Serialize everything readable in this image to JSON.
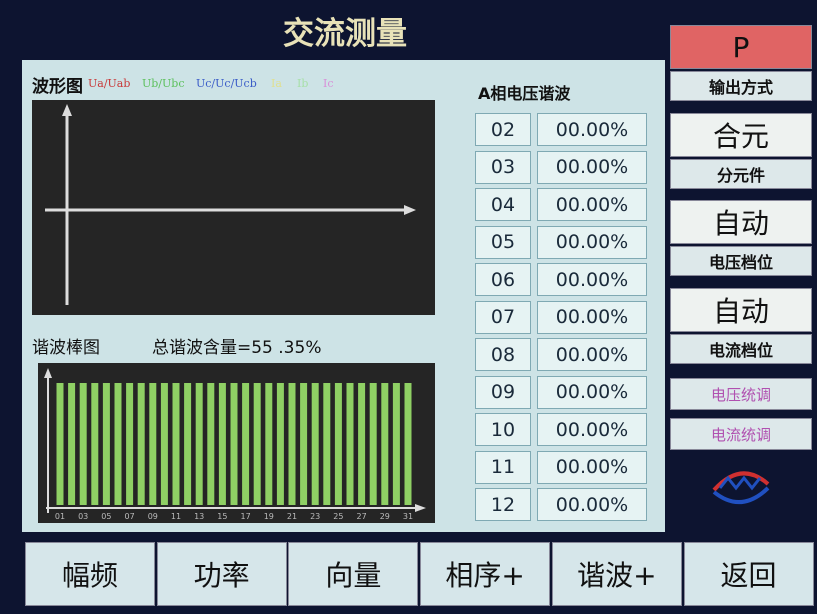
{
  "title": "交流测量",
  "waveform": {
    "label": "波形图",
    "legend": [
      {
        "text": "Ua/Uab",
        "color": "#c83a3a"
      },
      {
        "text": "Ub/Ubc",
        "color": "#5cc05c"
      },
      {
        "text": "Uc/Uc/Ucb",
        "color": "#3a5cc8"
      },
      {
        "text": "Ia",
        "color": "#e0e090"
      },
      {
        "text": "Ib",
        "color": "#a8e0a8"
      },
      {
        "text": "Ic",
        "color": "#d890d8"
      }
    ]
  },
  "harmonic": {
    "label": "谐波棒图",
    "total": "总谐波含量=55 .35%",
    "axis_labels": [
      "01",
      "03",
      "05",
      "07",
      "09",
      "11",
      "13",
      "15",
      "17",
      "19",
      "21",
      "23",
      "25",
      "27",
      "29",
      "31"
    ]
  },
  "table": {
    "title": "A相电压谐波",
    "rows": [
      [
        "02",
        "00.00%"
      ],
      [
        "03",
        "00.00%"
      ],
      [
        "04",
        "00.00%"
      ],
      [
        "05",
        "00.00%"
      ],
      [
        "06",
        "00.00%"
      ],
      [
        "07",
        "00.00%"
      ],
      [
        "08",
        "00.00%"
      ],
      [
        "09",
        "00.00%"
      ],
      [
        "10",
        "00.00%"
      ],
      [
        "11",
        "00.00%"
      ],
      [
        "12",
        "00.00%"
      ]
    ]
  },
  "side": [
    {
      "top": "P",
      "bottom": "输出方式"
    },
    {
      "top": "合元",
      "bottom": "分元件"
    },
    {
      "top": "自动",
      "bottom": "电压档位"
    },
    {
      "top": "自动",
      "bottom": "电流档位"
    }
  ],
  "side_small": [
    "电压统调",
    "电流统调"
  ],
  "bottom": [
    "幅频",
    "功率",
    "向量",
    "相序+",
    "谐波+",
    "返回"
  ]
}
